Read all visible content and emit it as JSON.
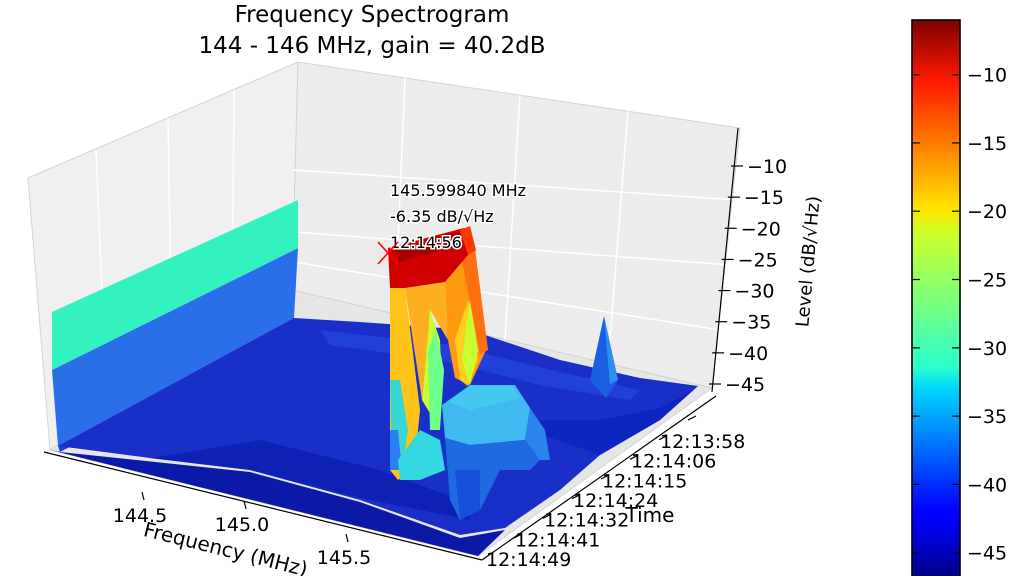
{
  "chart_data": {
    "type": "surface3d",
    "title": [
      "Frequency Spectrogram",
      "144 - 146 MHz, gain = 40.2dB"
    ],
    "xlabel": "Frequency (MHz)",
    "ylabel": "Time",
    "zlabel": "Level (dB/√Hz)",
    "x_ticks": [
      "144.5",
      "145.0",
      "145.5"
    ],
    "y_ticks": [
      "12:13:58",
      "12:14:06",
      "12:14:15",
      "12:14:24",
      "12:14:32",
      "12:14:41",
      "12:14:49"
    ],
    "z_ticks": [
      -10,
      -15,
      -20,
      -25,
      -30,
      -35,
      -40,
      -45
    ],
    "zlim": [
      -45,
      -10
    ],
    "colormap": "jet",
    "colorbar": {
      "ticks": [
        -10,
        -15,
        -20,
        -25,
        -30,
        -35,
        -40,
        -45
      ],
      "range": [
        -47,
        -6
      ]
    },
    "peak_annotation": {
      "frequency": "145.599840 MHz",
      "level": "-6.35 dB/√Hz",
      "time": "12:14:56",
      "marker": "x",
      "color": "#ff0000"
    },
    "grid": true
  }
}
